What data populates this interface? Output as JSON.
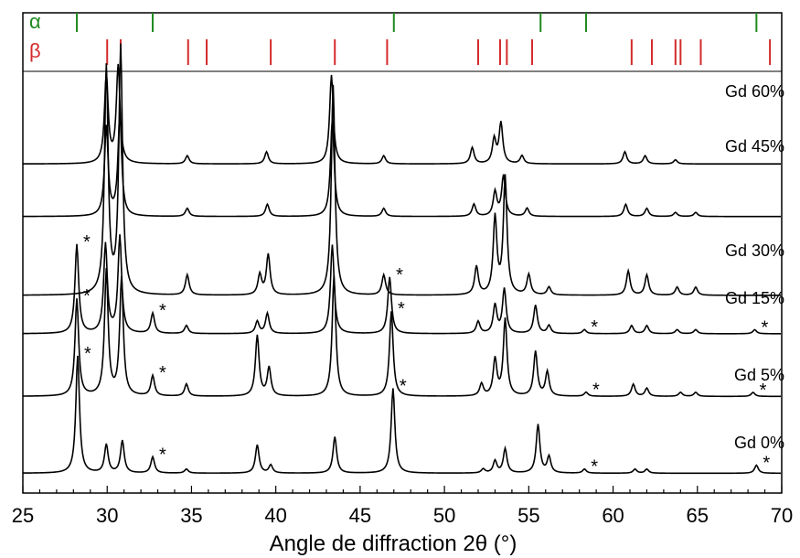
{
  "chart_data": {
    "type": "line",
    "xlabel": "Angle de diffraction 2θ (°)",
    "ylabel": "",
    "xlim": [
      25,
      70
    ],
    "x_ticks": [
      25,
      30,
      35,
      40,
      45,
      50,
      55,
      60,
      65,
      70
    ],
    "y_ticks": [],
    "grid": false,
    "colors": {
      "trace": "#000000",
      "alpha": "#1f8a1f",
      "beta": "#d42a2a",
      "axis": "#000000"
    },
    "reference_markers": [
      {
        "name": "α",
        "color": "#1f8a1f",
        "positions": [
          28.2,
          32.7,
          47.0,
          55.7,
          58.4,
          68.5
        ]
      },
      {
        "name": "β",
        "color": "#d42a2a",
        "positions": [
          30.0,
          30.8,
          34.8,
          35.9,
          39.7,
          43.5,
          46.6,
          52.0,
          53.3,
          53.7,
          55.2,
          61.1,
          62.3,
          63.7,
          64.0,
          65.2,
          69.3
        ]
      }
    ],
    "series": [
      {
        "name": "Gd 60%",
        "baseline": 0.78,
        "peaks": [
          [
            29.95,
            0.22
          ],
          [
            30.65,
            0.24
          ],
          [
            34.75,
            0.02
          ],
          [
            39.45,
            0.03
          ],
          [
            43.3,
            0.22
          ],
          [
            46.4,
            0.02
          ],
          [
            51.65,
            0.04
          ],
          [
            52.95,
            0.06
          ],
          [
            53.35,
            0.1
          ],
          [
            54.6,
            0.02
          ],
          [
            60.7,
            0.03
          ],
          [
            61.9,
            0.02
          ],
          [
            63.7,
            0.01
          ]
        ],
        "stars": []
      },
      {
        "name": "Gd 45%",
        "baseline": 0.65,
        "peaks": [
          [
            29.95,
            0.22
          ],
          [
            30.75,
            0.25
          ],
          [
            34.75,
            0.02
          ],
          [
            39.5,
            0.03
          ],
          [
            43.35,
            0.24
          ],
          [
            46.4,
            0.02
          ],
          [
            51.75,
            0.03
          ],
          [
            53.0,
            0.06
          ],
          [
            53.5,
            0.1
          ],
          [
            54.9,
            0.02
          ],
          [
            60.75,
            0.03
          ],
          [
            62.0,
            0.02
          ],
          [
            63.7,
            0.01
          ],
          [
            64.9,
            0.01
          ]
        ],
        "stars": []
      },
      {
        "name": "Gd 30%",
        "baseline": 0.455,
        "peaks": [
          [
            29.95,
            0.56
          ],
          [
            30.8,
            0.61
          ],
          [
            34.75,
            0.05
          ],
          [
            39.05,
            0.05
          ],
          [
            39.55,
            0.1
          ],
          [
            43.4,
            0.52
          ],
          [
            46.4,
            0.05
          ],
          [
            51.9,
            0.07
          ],
          [
            53.0,
            0.19
          ],
          [
            53.6,
            0.29
          ],
          [
            55.0,
            0.05
          ],
          [
            56.2,
            0.02
          ],
          [
            60.9,
            0.06
          ],
          [
            62.0,
            0.05
          ],
          [
            63.8,
            0.02
          ],
          [
            64.9,
            0.02
          ]
        ],
        "stars": []
      },
      {
        "name": "Gd 15%",
        "baseline": 0.36,
        "peaks": [
          [
            28.2,
            0.22
          ],
          [
            29.9,
            0.22
          ],
          [
            30.75,
            0.24
          ],
          [
            32.7,
            0.05
          ],
          [
            34.7,
            0.02
          ],
          [
            38.9,
            0.03
          ],
          [
            39.5,
            0.05
          ],
          [
            43.35,
            0.22
          ],
          [
            46.75,
            0.14
          ],
          [
            52.0,
            0.03
          ],
          [
            53.0,
            0.07
          ],
          [
            53.55,
            0.11
          ],
          [
            55.4,
            0.07
          ],
          [
            56.2,
            0.02
          ],
          [
            58.3,
            0.01
          ],
          [
            61.1,
            0.02
          ],
          [
            62.0,
            0.02
          ],
          [
            63.8,
            0.01
          ],
          [
            64.9,
            0.01
          ],
          [
            68.4,
            0.01
          ]
        ],
        "stars": [
          28.2,
          32.7,
          46.75,
          58.3,
          68.4
        ]
      },
      {
        "name": "Gd 5%",
        "baseline": 0.205,
        "peaks": [
          [
            28.2,
            0.24
          ],
          [
            29.95,
            0.31
          ],
          [
            30.85,
            0.29
          ],
          [
            32.7,
            0.05
          ],
          [
            34.7,
            0.03
          ],
          [
            38.9,
            0.15
          ],
          [
            39.6,
            0.07
          ],
          [
            43.45,
            0.3
          ],
          [
            46.85,
            0.21
          ],
          [
            52.2,
            0.03
          ],
          [
            53.0,
            0.09
          ],
          [
            53.6,
            0.19
          ],
          [
            55.4,
            0.11
          ],
          [
            56.1,
            0.06
          ],
          [
            58.4,
            0.01
          ],
          [
            61.2,
            0.03
          ],
          [
            62.0,
            0.02
          ],
          [
            64.0,
            0.01
          ],
          [
            64.9,
            0.01
          ],
          [
            68.3,
            0.01
          ]
        ],
        "stars": [
          28.2,
          32.7,
          46.85,
          58.4,
          68.3
        ]
      },
      {
        "name": "Gd 0%",
        "baseline": 0.015,
        "peaks": [
          [
            28.25,
            0.29
          ],
          [
            29.95,
            0.07
          ],
          [
            30.9,
            0.08
          ],
          [
            32.7,
            0.04
          ],
          [
            34.7,
            0.01
          ],
          [
            38.9,
            0.07
          ],
          [
            39.7,
            0.02
          ],
          [
            43.5,
            0.09
          ],
          [
            46.95,
            0.21
          ],
          [
            52.3,
            0.01
          ],
          [
            53.0,
            0.03
          ],
          [
            53.6,
            0.06
          ],
          [
            55.55,
            0.12
          ],
          [
            56.2,
            0.04
          ],
          [
            58.3,
            0.01
          ],
          [
            61.3,
            0.01
          ],
          [
            62.0,
            0.01
          ],
          [
            68.5,
            0.02
          ]
        ],
        "stars": [
          28.25,
          32.7,
          46.95,
          58.3,
          68.5
        ]
      }
    ]
  }
}
